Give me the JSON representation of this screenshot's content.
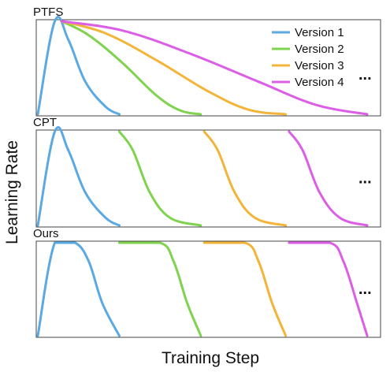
{
  "chart_data": {
    "type": "line",
    "xlabel": "Training Step",
    "ylabel": "Learning Rate",
    "ellipsis": "...",
    "legend": {
      "placement": "top-right",
      "entries": [
        "Version 1",
        "Version 2",
        "Version 3",
        "Version 4"
      ]
    },
    "colors": {
      "Version 1": "#5aa9e2",
      "Version 2": "#7fd34e",
      "Version 3": "#f2b53a",
      "Version 4": "#dd5ee6",
      "frame": "#444444"
    },
    "xlim": [
      0,
      100
    ],
    "ylim": [
      0,
      1
    ],
    "panels": [
      {
        "title": "PTFS",
        "series": [
          {
            "name": "Version 1",
            "points": [
              [
                0,
                0
              ],
              [
                5,
                1
              ],
              [
                9,
                0.8
              ],
              [
                14,
                0.35
              ],
              [
                20,
                0.08
              ],
              [
                24,
                0
              ]
            ]
          },
          {
            "name": "Version 2",
            "points": [
              [
                7,
                1
              ],
              [
                15,
                0.85
              ],
              [
                25,
                0.55
              ],
              [
                35,
                0.2
              ],
              [
                42,
                0.04
              ],
              [
                48,
                0
              ]
            ]
          },
          {
            "name": "Version 3",
            "points": [
              [
                7,
                1
              ],
              [
                20,
                0.87
              ],
              [
                35,
                0.58
              ],
              [
                50,
                0.25
              ],
              [
                62,
                0.05
              ],
              [
                73,
                0
              ]
            ]
          },
          {
            "name": "Version 4",
            "points": [
              [
                7,
                1
              ],
              [
                25,
                0.9
              ],
              [
                45,
                0.65
              ],
              [
                65,
                0.35
              ],
              [
                82,
                0.1
              ],
              [
                97,
                0
              ]
            ]
          }
        ]
      },
      {
        "title": "CPT",
        "series": [
          {
            "name": "Version 1",
            "points": [
              [
                0,
                0
              ],
              [
                5,
                1
              ],
              [
                9,
                0.8
              ],
              [
                14,
                0.35
              ],
              [
                20,
                0.08
              ],
              [
                24,
                0
              ]
            ]
          },
          {
            "name": "Version 2",
            "points": [
              [
                24,
                1
              ],
              [
                28,
                0.8
              ],
              [
                33,
                0.35
              ],
              [
                39,
                0.08
              ],
              [
                48,
                0
              ]
            ]
          },
          {
            "name": "Version 3",
            "points": [
              [
                49,
                1
              ],
              [
                53,
                0.8
              ],
              [
                58,
                0.35
              ],
              [
                64,
                0.08
              ],
              [
                73,
                0
              ]
            ]
          },
          {
            "name": "Version 4",
            "points": [
              [
                74,
                1
              ],
              [
                78,
                0.8
              ],
              [
                83,
                0.35
              ],
              [
                89,
                0.08
              ],
              [
                97,
                0
              ]
            ]
          }
        ]
      },
      {
        "title": "Ours",
        "series": [
          {
            "name": "Version 1",
            "points": [
              [
                0,
                0
              ],
              [
                5,
                1
              ],
              [
                11,
                1
              ],
              [
                15,
                0.8
              ],
              [
                19,
                0.35
              ],
              [
                24,
                0
              ]
            ]
          },
          {
            "name": "Version 2",
            "points": [
              [
                24,
                1
              ],
              [
                36,
                1
              ],
              [
                40,
                0.8
              ],
              [
                44,
                0.35
              ],
              [
                48,
                0
              ]
            ]
          },
          {
            "name": "Version 3",
            "points": [
              [
                49,
                1
              ],
              [
                61,
                1
              ],
              [
                65,
                0.8
              ],
              [
                69,
                0.35
              ],
              [
                73,
                0
              ]
            ]
          },
          {
            "name": "Version 4",
            "points": [
              [
                74,
                1
              ],
              [
                86,
                1
              ],
              [
                90,
                0.8
              ],
              [
                94,
                0.35
              ],
              [
                97,
                0
              ]
            ]
          }
        ]
      }
    ]
  }
}
